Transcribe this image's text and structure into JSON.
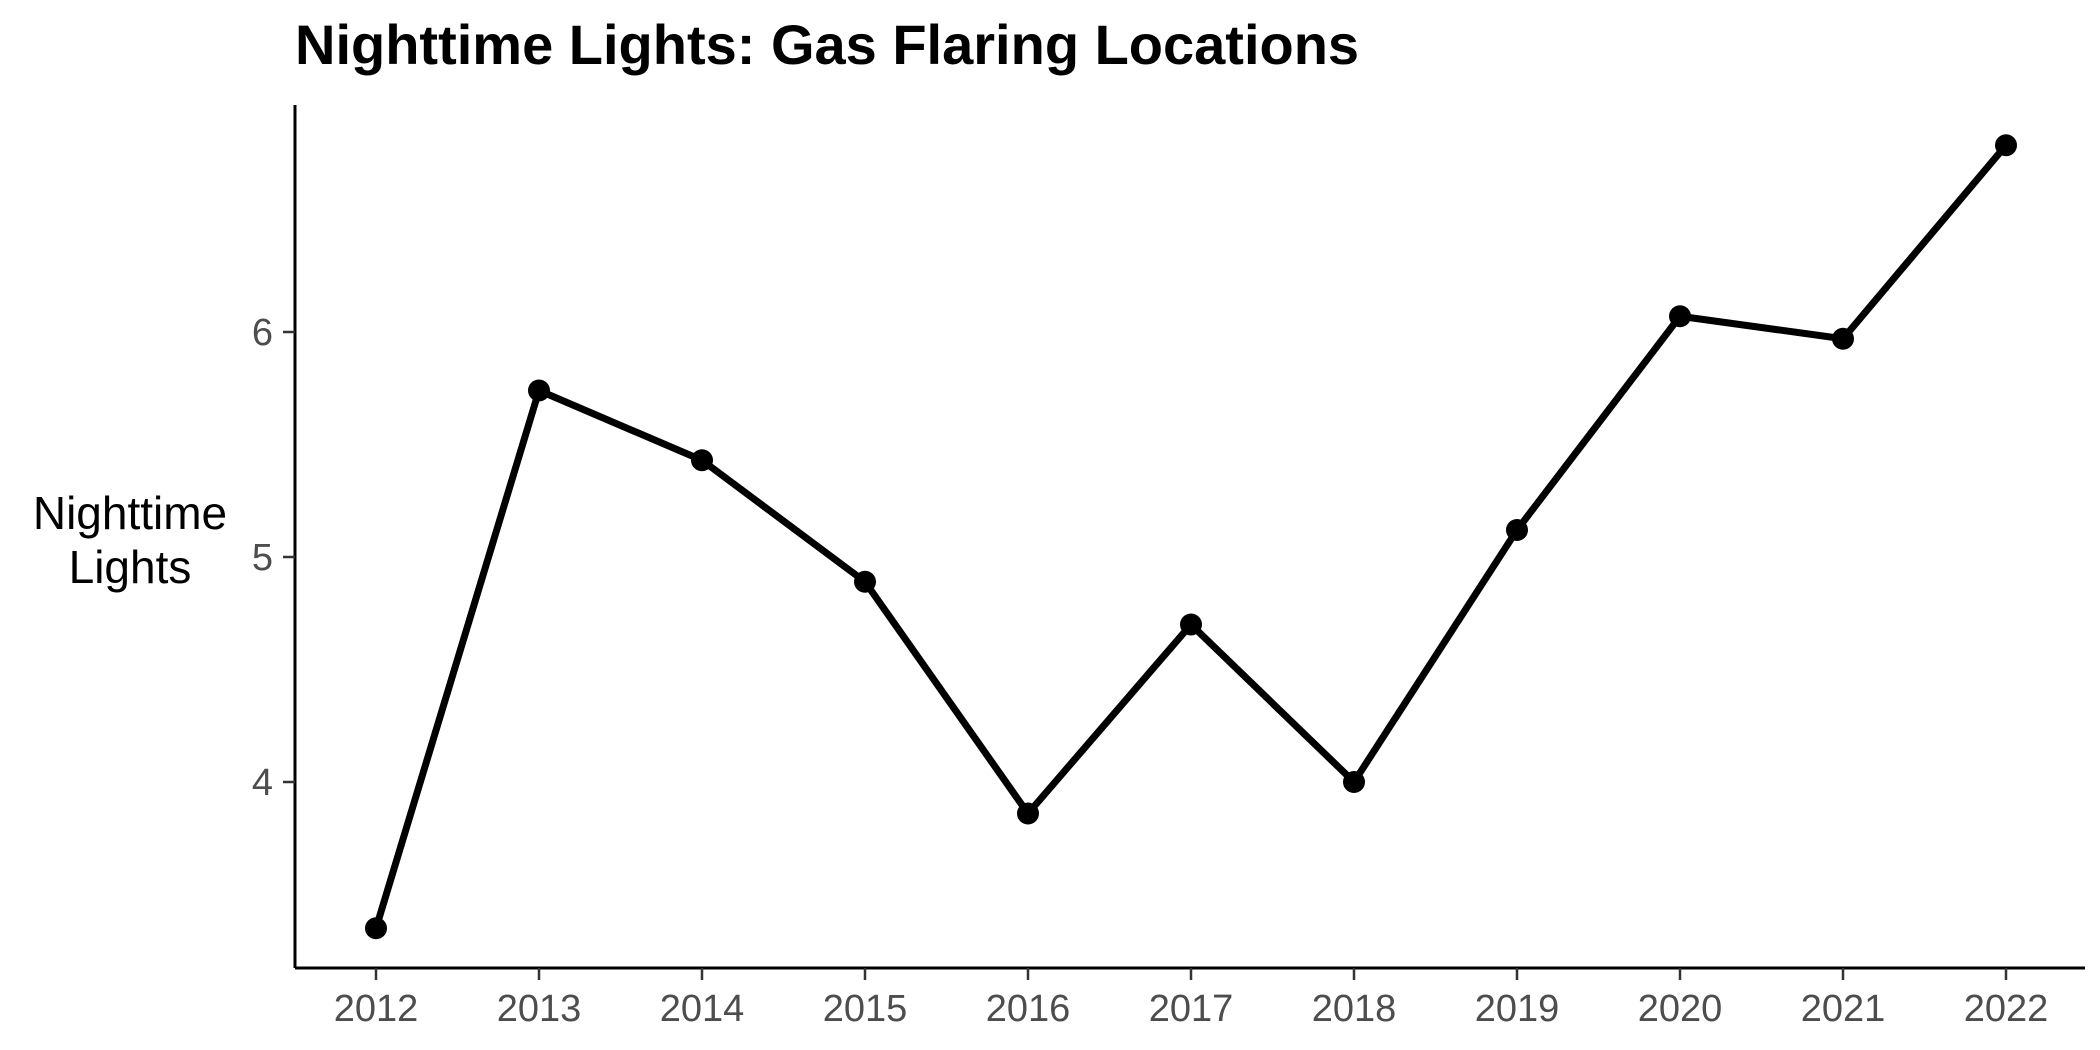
{
  "chart_data": {
    "type": "line",
    "title": "Nighttime Lights: Gas Flaring Locations",
    "xlabel": "",
    "ylabel": "Nighttime Lights",
    "x": [
      2012,
      2013,
      2014,
      2015,
      2016,
      2017,
      2018,
      2019,
      2020,
      2021,
      2022
    ],
    "series": [
      {
        "values": [
          3.35,
          5.74,
          5.43,
          4.89,
          3.86,
          4.7,
          4.0,
          5.12,
          6.07,
          5.97,
          6.83
        ]
      }
    ],
    "x_ticks": [
      "2012",
      "2013",
      "2014",
      "2015",
      "2016",
      "2017",
      "2018",
      "2019",
      "2020",
      "2021",
      "2022"
    ],
    "y_ticks": [
      "4",
      "5",
      "6"
    ],
    "xlim": [
      2011.5,
      2022.5
    ],
    "ylim": [
      3.17,
      7.0
    ],
    "grid": false,
    "legend": "none",
    "line_color": "#000000",
    "tick_label_color": "#4d4d4d"
  }
}
